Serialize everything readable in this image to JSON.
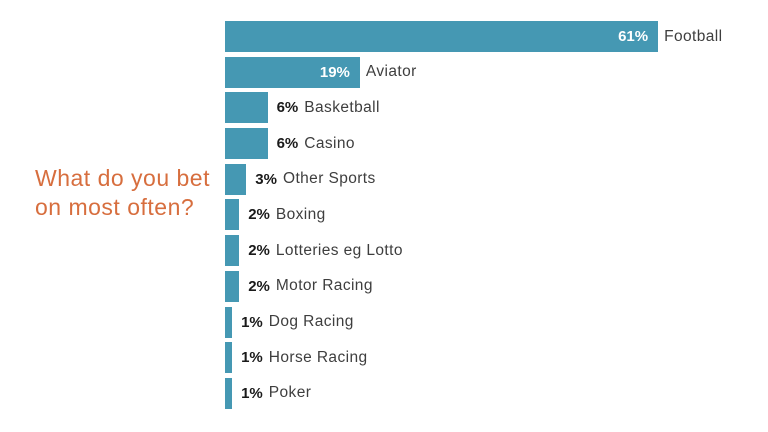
{
  "title": {
    "text": "What do you bet on most often?",
    "color": "#d76e3e"
  },
  "chart_data": {
    "type": "bar",
    "orientation": "horizontal",
    "title": "What do you bet on most often?",
    "categories": [
      "Football",
      "Aviator",
      "Basketball",
      "Casino",
      "Other Sports",
      "Boxing",
      "Lotteries eg Lotto",
      "Motor Racing",
      "Dog Racing",
      "Horse Racing",
      "Poker"
    ],
    "values": [
      61,
      19,
      6,
      6,
      3,
      2,
      2,
      2,
      1,
      1,
      1
    ],
    "value_labels": [
      "61%",
      "19%",
      "6%",
      "6%",
      "3%",
      "2%",
      "2%",
      "2%",
      "1%",
      "1%",
      "1%"
    ],
    "unit": "%",
    "xlim": [
      0,
      70
    ],
    "grid": "off",
    "legend": "none",
    "bar_color": "#4598b3",
    "value_label_color_inside": "#ffffff",
    "value_label_color_outside": "#1a1a1a",
    "category_label_color": "#3e3e3e"
  }
}
